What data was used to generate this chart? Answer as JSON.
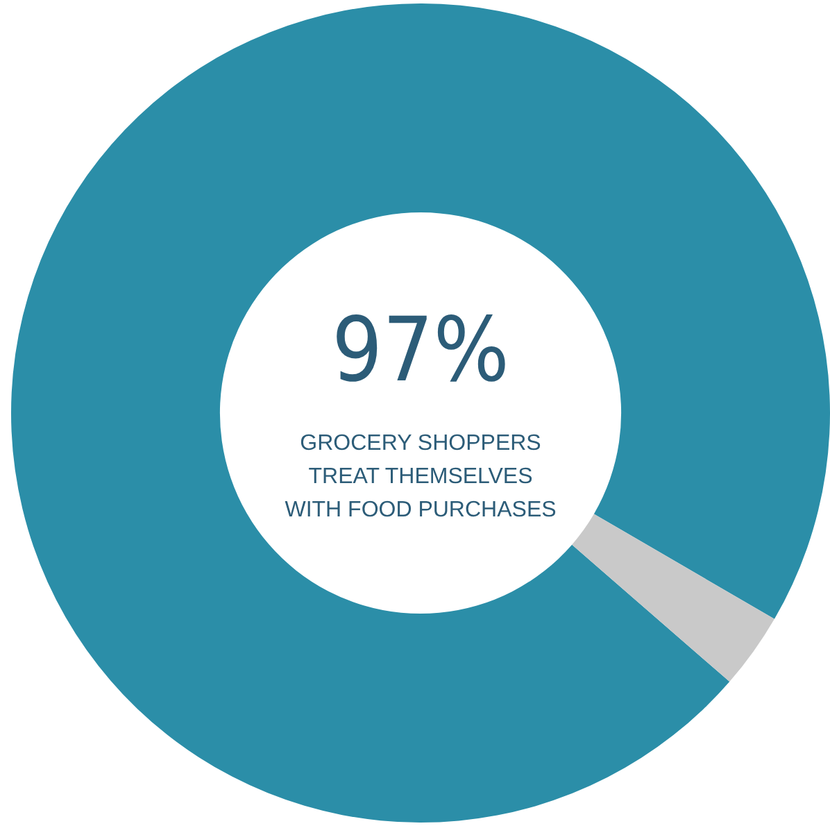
{
  "chart_data": {
    "type": "donut",
    "categories": [
      null,
      null
    ],
    "values": [
      97,
      3
    ],
    "colors": [
      "#2b8ea8",
      "#c9c9c9"
    ],
    "value_labels": [
      "97%",
      null
    ],
    "annotations": [
      "GROCERY SHOPPERS TREAT THEMSELVES WITH FOOD PURCHASES"
    ]
  }
}
